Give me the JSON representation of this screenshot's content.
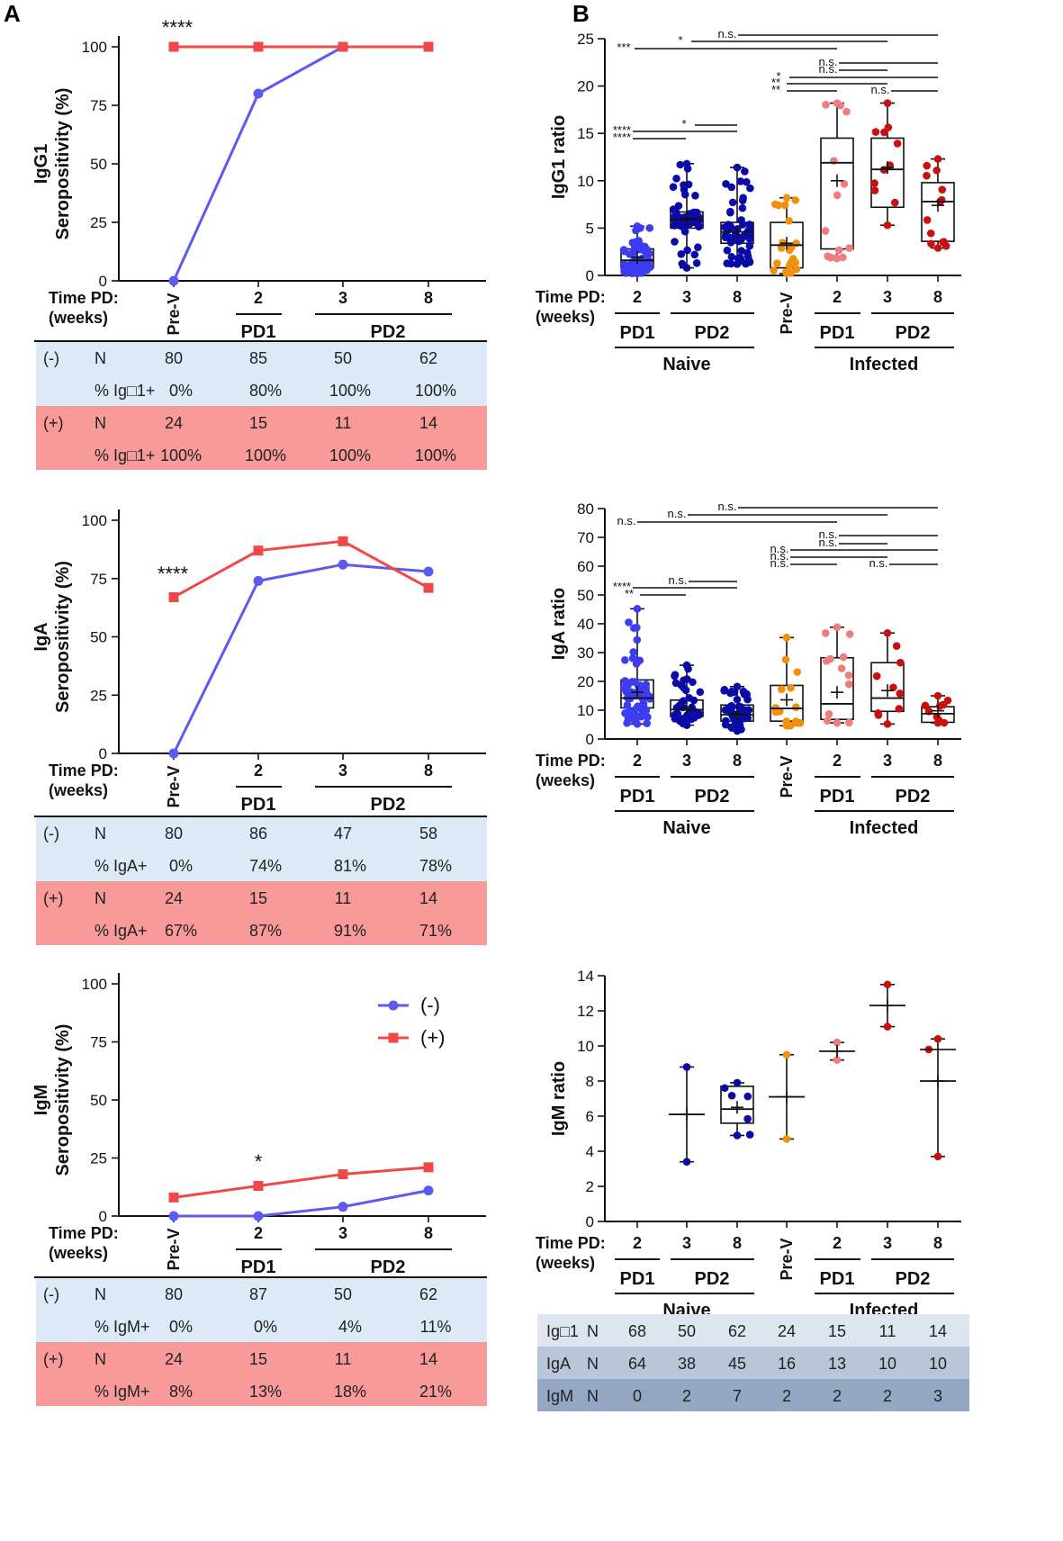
{
  "panel_a_label": "A",
  "panel_b_label": "B",
  "time_label_1": "Time PD:",
  "time_label_2": "(weeks)",
  "pd1": "PD1",
  "pd2": "PD2",
  "naive": "Naive",
  "infected": "Infected",
  "pre_v": "Pre-V",
  "colors": {
    "neg": "#5b5bf0",
    "pos": "#f04848",
    "naive_pd1": "#3c3cf0",
    "naive_pd2": "#0a0aa8",
    "prev": "#f0900c",
    "inf_pd1": "#f07c7c",
    "inf_pd2": "#c81010",
    "neg_bg": "#dce9f7",
    "pos_bg": "#f99a9a"
  },
  "legend": {
    "neg": "(-)",
    "pos": "(+)"
  },
  "chart_data": [
    {
      "id": "igg1_sero",
      "type": "line",
      "ylabel_1": "IgG1",
      "ylabel_2": "Seropositivity (%)",
      "categories": [
        "Pre-V",
        "2",
        "3",
        "8"
      ],
      "ylim": [
        0,
        100
      ],
      "yticks": [
        "0",
        "25",
        "50",
        "75",
        "100"
      ],
      "series": [
        {
          "name": "(-)",
          "values": [
            0,
            80,
            100,
            100
          ]
        },
        {
          "name": "(+)",
          "values": [
            100,
            100,
            100,
            100
          ]
        }
      ],
      "annotation": "****"
    },
    {
      "id": "iga_sero",
      "type": "line",
      "ylabel_1": "IgA",
      "ylabel_2": "Seropositivity (%)",
      "categories": [
        "Pre-V",
        "2",
        "3",
        "8"
      ],
      "ylim": [
        0,
        100
      ],
      "yticks": [
        "0",
        "25",
        "50",
        "75",
        "100"
      ],
      "series": [
        {
          "name": "(-)",
          "values": [
            0,
            74,
            81,
            78
          ]
        },
        {
          "name": "(+)",
          "values": [
            67,
            87,
            91,
            71
          ]
        }
      ],
      "annotation": "****"
    },
    {
      "id": "igm_sero",
      "type": "line",
      "ylabel_1": "IgM",
      "ylabel_2": "Seropositivity (%)",
      "categories": [
        "Pre-V",
        "2",
        "3",
        "8"
      ],
      "ylim": [
        0,
        100
      ],
      "yticks": [
        "0",
        "25",
        "50",
        "75",
        "100"
      ],
      "series": [
        {
          "name": "(-)",
          "values": [
            0,
            0,
            4,
            11
          ]
        },
        {
          "name": "(+)",
          "values": [
            8,
            13,
            18,
            21
          ]
        }
      ],
      "annotation": "*"
    },
    {
      "id": "igg1_ratio",
      "type": "box",
      "ylabel": "IgG1 ratio",
      "categories": [
        "2",
        "3",
        "8",
        "Pre-V",
        "2",
        "3",
        "8"
      ],
      "ylim": [
        0,
        25
      ],
      "yticks": [
        "0",
        "5",
        "10",
        "15",
        "20",
        "25"
      ],
      "boxes": [
        {
          "min": 0.2,
          "q1": 0.8,
          "median": 1.6,
          "q3": 2.8,
          "max": 5.2,
          "mean": 1.9,
          "n": 68
        },
        {
          "min": 0.8,
          "q1": 5.0,
          "median": 5.9,
          "q3": 6.7,
          "max": 11.8,
          "mean": 6.0,
          "n": 50
        },
        {
          "min": 1.2,
          "q1": 3.4,
          "median": 4.6,
          "q3": 5.6,
          "max": 11.4,
          "mean": 4.6,
          "n": 62
        },
        {
          "min": 0.2,
          "q1": 0.8,
          "median": 3.2,
          "q3": 5.6,
          "max": 8.2,
          "mean": 3.4,
          "n": 24
        },
        {
          "min": 1.8,
          "q1": 2.8,
          "median": 11.9,
          "q3": 14.5,
          "max": 18.2,
          "mean": 10.0,
          "n": 15
        },
        {
          "min": 5.3,
          "q1": 7.2,
          "median": 11.2,
          "q3": 14.5,
          "max": 18.2,
          "mean": 11.4,
          "n": 11
        },
        {
          "min": 2.9,
          "q1": 3.6,
          "median": 7.8,
          "q3": 9.8,
          "max": 12.3,
          "mean": 7.4,
          "n": 14
        }
      ],
      "sig_labels": [
        "n.s.",
        "*",
        "***",
        "n.s.",
        "n.s.",
        "*",
        "**",
        "**",
        "n.s.",
        "*",
        "****",
        "****"
      ]
    },
    {
      "id": "iga_ratio",
      "type": "box",
      "ylabel": "IgA ratio",
      "categories": [
        "2",
        "3",
        "8",
        "Pre-V",
        "2",
        "3",
        "8"
      ],
      "ylim": [
        0,
        80
      ],
      "yticks": [
        "0",
        "10",
        "20",
        "30",
        "40",
        "50",
        "60",
        "70",
        "80"
      ],
      "boxes": [
        {
          "min": 5.2,
          "q1": 10.8,
          "median": 14.2,
          "q3": 20.5,
          "max": 45.2,
          "mean": 16.2,
          "n": 64
        },
        {
          "min": 4.8,
          "q1": 7.8,
          "median": 10.2,
          "q3": 13.5,
          "max": 25.6,
          "mean": 11.0,
          "n": 38
        },
        {
          "min": 2.8,
          "q1": 6.2,
          "median": 8.4,
          "q3": 11.8,
          "max": 18.2,
          "mean": 8.8,
          "n": 45
        },
        {
          "min": 4.6,
          "q1": 6.2,
          "median": 10.6,
          "q3": 18.6,
          "max": 35.2,
          "mean": 13.6,
          "n": 16
        },
        {
          "min": 5.6,
          "q1": 6.8,
          "median": 12.2,
          "q3": 28.2,
          "max": 38.8,
          "mean": 16.2,
          "n": 13
        },
        {
          "min": 5.2,
          "q1": 9.6,
          "median": 14.2,
          "q3": 26.5,
          "max": 36.8,
          "mean": 16.8,
          "n": 10
        },
        {
          "min": 5.6,
          "q1": 5.8,
          "median": 8.8,
          "q3": 11.2,
          "max": 15.0,
          "mean": 9.8,
          "n": 10
        }
      ],
      "sig_labels": [
        "n.s.",
        "n.s.",
        "n.s.",
        "n.s.",
        "n.s.",
        "n.s.",
        "n.s.",
        "n.s.",
        "n.s.",
        "n.s.",
        "****",
        "**"
      ]
    },
    {
      "id": "igm_ratio",
      "type": "box",
      "ylabel": "IgM ratio",
      "categories": [
        "2",
        "3",
        "8",
        "Pre-V",
        "2",
        "3",
        "8"
      ],
      "ylim": [
        0,
        14
      ],
      "yticks": [
        "0",
        "2",
        "4",
        "6",
        "8",
        "10",
        "12",
        "14"
      ],
      "boxes": [
        null,
        {
          "min": 3.4,
          "max": 8.8,
          "mean": 6.1,
          "n": 2
        },
        {
          "min": 4.9,
          "q1": 5.6,
          "median": 6.4,
          "q3": 7.7,
          "max": 7.9,
          "mean": 6.5,
          "n": 7
        },
        {
          "min": 4.7,
          "max": 9.5,
          "mean": 7.1,
          "n": 2
        },
        {
          "min": 9.2,
          "max": 10.2,
          "mean": 9.7,
          "n": 2
        },
        {
          "min": 11.1,
          "max": 13.5,
          "mean": 12.3,
          "n": 2
        },
        {
          "min": 3.7,
          "max": 10.4,
          "mean": 8.0,
          "median": 9.8,
          "n": 3
        }
      ]
    }
  ],
  "tables": [
    {
      "id": "igg1",
      "neg_label": "(-)",
      "pos_label": "(+)",
      "n_label": "N",
      "pct_label": "% Ig□1+",
      "neg_n": [
        "80",
        "85",
        "50",
        "62"
      ],
      "neg_pct": [
        "0%",
        "80%",
        "100%",
        "100%"
      ],
      "pos_n": [
        "24",
        "15",
        "11",
        "14"
      ],
      "pos_pct": [
        "100%",
        "100%",
        "100%",
        "100%"
      ]
    },
    {
      "id": "iga",
      "neg_label": "(-)",
      "pos_label": "(+)",
      "n_label": "N",
      "pct_label": "% IgA+",
      "neg_n": [
        "80",
        "86",
        "47",
        "58"
      ],
      "neg_pct": [
        "0%",
        "74%",
        "81%",
        "78%"
      ],
      "pos_n": [
        "24",
        "15",
        "11",
        "14"
      ],
      "pos_pct": [
        "67%",
        "87%",
        "91%",
        "71%"
      ]
    },
    {
      "id": "igm",
      "neg_label": "(-)",
      "pos_label": "(+)",
      "n_label": "N",
      "pct_label": "% IgM+",
      "neg_n": [
        "80",
        "87",
        "50",
        "62"
      ],
      "neg_pct": [
        "0%",
        "0%",
        "4%",
        "11%"
      ],
      "pos_n": [
        "24",
        "15",
        "11",
        "14"
      ],
      "pos_pct": [
        "8%",
        "13%",
        "18%",
        "21%"
      ]
    }
  ],
  "n_table": {
    "rows": [
      {
        "iso": "Ig□1",
        "n": "N",
        "values": [
          "68",
          "50",
          "62",
          "24",
          "15",
          "11",
          "14"
        ]
      },
      {
        "iso": "IgA",
        "n": "N",
        "values": [
          "64",
          "38",
          "45",
          "16",
          "13",
          "10",
          "10"
        ]
      },
      {
        "iso": "IgM",
        "n": "N",
        "values": [
          "0",
          "2",
          "7",
          "2",
          "2",
          "2",
          "3"
        ]
      }
    ]
  }
}
